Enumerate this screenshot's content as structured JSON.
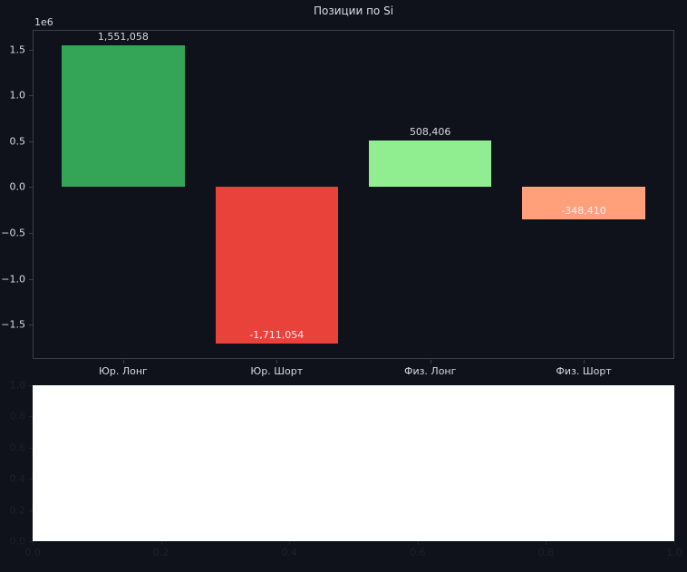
{
  "figure": {
    "background_color": "#0f121b",
    "text_color": "#d8dae0",
    "spine_color": "#3b3e46",
    "muted_tick_color": "#1d212b"
  },
  "chart_data": [
    {
      "type": "bar",
      "title": "Позиции по Si",
      "categories": [
        "Юр. Лонг",
        "Юр. Шорт",
        "Физ. Лонг",
        "Физ. Шорт"
      ],
      "values": [
        1551058,
        -1711054,
        508406,
        -348410
      ],
      "value_labels": [
        "1,551,058",
        "-1,711,054",
        "508,406",
        "-348,410"
      ],
      "bar_colors": [
        "#34a457",
        "#e8423a",
        "#90ee90",
        "#ffa07a"
      ],
      "xlabel": "",
      "ylabel": "",
      "offset_label": "1e6",
      "ytick_labels": [
        "1.5",
        "1.0",
        "0.5",
        "0.0",
        "−0.5",
        "−1.0",
        "−1.5"
      ],
      "ytick_values": [
        1500000,
        1000000,
        500000,
        0,
        -500000,
        -1000000,
        -1500000
      ],
      "ylim": [
        -1874160,
        1714164
      ],
      "xlim": [
        -0.59,
        3.59
      ],
      "bar_width": 0.8,
      "grid": false,
      "legend": null
    },
    {
      "type": "empty",
      "title": "",
      "background": "#ffffff",
      "xtick_labels": [
        "0.0",
        "0.2",
        "0.4",
        "0.6",
        "0.8",
        "1.0"
      ],
      "xtick_values": [
        0,
        0.2,
        0.4,
        0.6,
        0.8,
        1.0
      ],
      "ytick_labels": [
        "1.0",
        "0.8",
        "0.6",
        "0.4",
        "0.2",
        "0.0"
      ],
      "ytick_values": [
        1.0,
        0.8,
        0.6,
        0.4,
        0.2,
        0.0
      ],
      "xlim": [
        0,
        1
      ],
      "ylim": [
        0,
        1
      ],
      "grid": false,
      "legend": null
    }
  ]
}
